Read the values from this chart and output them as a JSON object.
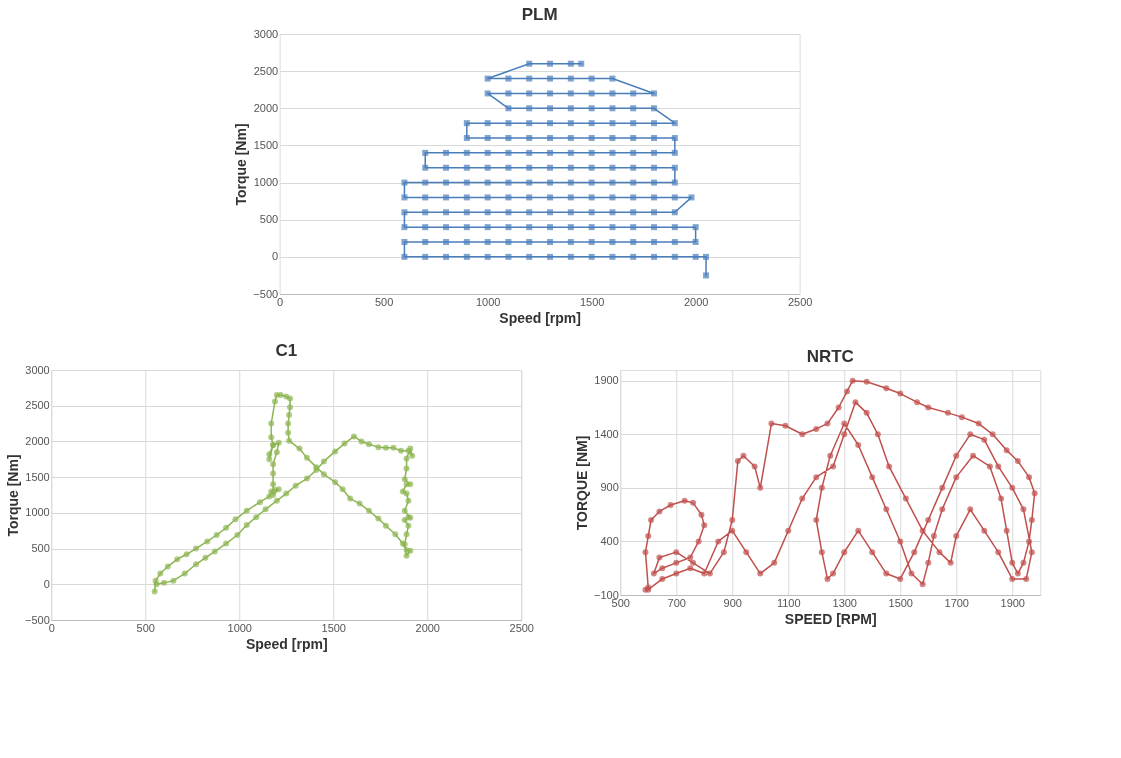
{
  "chart_data": [
    {
      "type": "line",
      "title": "PLM",
      "xlabel": "Speed [rpm]",
      "ylabel": "Torque [Nm]",
      "xlim": [
        0,
        2500
      ],
      "ylim": [
        -500,
        3000
      ],
      "xticks": [
        0,
        500,
        1000,
        1500,
        2000,
        2500
      ],
      "yticks": [
        -500,
        0,
        500,
        1000,
        1500,
        2000,
        2500,
        3000
      ],
      "grid": "y",
      "marker": "square",
      "line_style": "solid",
      "series": [
        {
          "color": "#4a7ebb",
          "x": [
            2050,
            2050,
            2000,
            1900,
            1800,
            1700,
            1600,
            1500,
            1400,
            1300,
            1200,
            1100,
            1000,
            900,
            800,
            700,
            600,
            600,
            700,
            800,
            900,
            1000,
            1100,
            1200,
            1300,
            1400,
            1500,
            1600,
            1700,
            1800,
            1900,
            2000,
            2000,
            1900,
            1800,
            1700,
            1600,
            1500,
            1400,
            1300,
            1200,
            1100,
            1000,
            900,
            800,
            700,
            600,
            600,
            700,
            800,
            900,
            1000,
            1100,
            1200,
            1300,
            1400,
            1500,
            1600,
            1700,
            1800,
            1900,
            1980,
            1900,
            1800,
            1700,
            1600,
            1500,
            1400,
            1300,
            1200,
            1100,
            1000,
            900,
            800,
            700,
            600,
            600,
            700,
            800,
            900,
            1000,
            1100,
            1200,
            1300,
            1400,
            1500,
            1600,
            1700,
            1800,
            1900,
            1900,
            1800,
            1700,
            1600,
            1500,
            1400,
            1300,
            1200,
            1100,
            1000,
            900,
            800,
            700,
            700,
            800,
            900,
            1000,
            1100,
            1200,
            1300,
            1400,
            1500,
            1600,
            1700,
            1800,
            1900,
            1900,
            1800,
            1700,
            1600,
            1500,
            1400,
            1300,
            1200,
            1100,
            1000,
            900,
            900,
            1000,
            1100,
            1200,
            1300,
            1400,
            1500,
            1600,
            1700,
            1800,
            1900,
            1800,
            1700,
            1600,
            1500,
            1400,
            1300,
            1200,
            1100,
            1000,
            1100,
            1200,
            1300,
            1400,
            1500,
            1600,
            1700,
            1800,
            1600,
            1500,
            1400,
            1300,
            1200,
            1100,
            1000,
            1200,
            1300,
            1400,
            1450
          ],
          "values": [
            -250,
            0,
            0,
            0,
            0,
            0,
            0,
            0,
            0,
            0,
            0,
            0,
            0,
            0,
            0,
            0,
            0,
            200,
            200,
            200,
            200,
            200,
            200,
            200,
            200,
            200,
            200,
            200,
            200,
            200,
            200,
            200,
            400,
            400,
            400,
            400,
            400,
            400,
            400,
            400,
            400,
            400,
            400,
            400,
            400,
            400,
            400,
            600,
            600,
            600,
            600,
            600,
            600,
            600,
            600,
            600,
            600,
            600,
            600,
            600,
            600,
            800,
            800,
            800,
            800,
            800,
            800,
            800,
            800,
            800,
            800,
            800,
            800,
            800,
            800,
            800,
            1000,
            1000,
            1000,
            1000,
            1000,
            1000,
            1000,
            1000,
            1000,
            1000,
            1000,
            1000,
            1000,
            1000,
            1200,
            1200,
            1200,
            1200,
            1200,
            1200,
            1200,
            1200,
            1200,
            1200,
            1200,
            1200,
            1200,
            1400,
            1400,
            1400,
            1400,
            1400,
            1400,
            1400,
            1400,
            1400,
            1400,
            1400,
            1400,
            1400,
            1600,
            1600,
            1600,
            1600,
            1600,
            1600,
            1600,
            1600,
            1600,
            1600,
            1600,
            1800,
            1800,
            1800,
            1800,
            1800,
            1800,
            1800,
            1800,
            1800,
            1800,
            1800,
            2000,
            2000,
            2000,
            2000,
            2000,
            2000,
            2000,
            2000,
            2200,
            2200,
            2200,
            2200,
            2200,
            2200,
            2200,
            2200,
            2200,
            2400,
            2400,
            2400,
            2400,
            2400,
            2400,
            2400,
            2600,
            2600,
            2600,
            2600
          ]
        }
      ]
    },
    {
      "type": "line",
      "title": "C1",
      "xlabel": "Speed [rpm]",
      "ylabel": "Torque [Nm]",
      "xlim": [
        0,
        2500
      ],
      "ylim": [
        -500,
        3000
      ],
      "xticks": [
        0,
        500,
        1000,
        1500,
        2000,
        2500
      ],
      "yticks": [
        -500,
        0,
        500,
        1000,
        1500,
        2000,
        2500,
        3000
      ],
      "grid": true,
      "marker": "circle",
      "line_style": "solid",
      "series": [
        {
          "color": "#8db552",
          "x": [
            550,
            555,
            580,
            620,
            670,
            720,
            770,
            830,
            880,
            930,
            980,
            1040,
            1110,
            1160,
            1170,
            1190,
            1210,
            1180,
            1180,
            1180,
            1180,
            1200,
            1210,
            1180,
            1160,
            1160,
            1180,
            1170,
            1170,
            1190,
            1200,
            1220,
            1250,
            1270,
            1270,
            1265,
            1260,
            1260,
            1265,
            1320,
            1360,
            1410,
            1450,
            1510,
            1550,
            1590,
            1640,
            1690,
            1740,
            1780,
            1830,
            1870,
            1890,
            1910,
            1890,
            1880,
            1890,
            1900,
            1880,
            1900,
            1910,
            1880,
            1900,
            1890,
            1870,
            1890,
            1910,
            1880,
            1890,
            1890,
            1910,
            1920,
            1900,
            1860,
            1820,
            1780,
            1740,
            1690,
            1650,
            1610,
            1560,
            1510,
            1450,
            1410,
            1360,
            1300,
            1250,
            1200,
            1140,
            1090,
            1040,
            990,
            930,
            870,
            820,
            770,
            710,
            650,
            600,
            560
          ],
          "values": [
            -100,
            50,
            150,
            250,
            350,
            420,
            500,
            600,
            690,
            790,
            910,
            1030,
            1150,
            1230,
            1300,
            1320,
            1330,
            1250,
            1400,
            1550,
            1680,
            1850,
            1980,
            1950,
            1750,
            1820,
            1950,
            2060,
            2250,
            2560,
            2650,
            2650,
            2630,
            2600,
            2480,
            2370,
            2250,
            2120,
            2010,
            1900,
            1770,
            1640,
            1540,
            1430,
            1330,
            1200,
            1130,
            1030,
            920,
            820,
            700,
            570,
            480,
            470,
            400,
            560,
            700,
            820,
            900,
            940,
            930,
            1030,
            1170,
            1270,
            1300,
            1400,
            1400,
            1470,
            1620,
            1760,
            1900,
            1800,
            1870,
            1870,
            1910,
            1910,
            1920,
            1960,
            2000,
            2070,
            1970,
            1860,
            1720,
            1600,
            1480,
            1380,
            1270,
            1170,
            1050,
            940,
            830,
            690,
            570,
            460,
            370,
            280,
            150,
            50,
            20,
            0
          ]
        }
      ]
    },
    {
      "type": "line",
      "title": "NRTC",
      "xlabel": "SPEED [RPM]",
      "ylabel": "TORQUE [NM]",
      "xlim": [
        500,
        2000
      ],
      "ylim": [
        -100,
        2000
      ],
      "xticks": [
        500,
        700,
        900,
        1100,
        1300,
        1500,
        1700,
        1900
      ],
      "yticks": [
        -100,
        400,
        900,
        1400,
        1900
      ],
      "grid": true,
      "marker": "circle",
      "line_style": "solid",
      "series": [
        {
          "color": "#c0504d",
          "x": [
            590,
            600,
            590,
            600,
            610,
            640,
            680,
            730,
            760,
            790,
            800,
            780,
            750,
            700,
            650,
            620,
            640,
            700,
            760,
            820,
            870,
            900,
            920,
            940,
            980,
            1000,
            1040,
            1090,
            1150,
            1200,
            1240,
            1280,
            1310,
            1330,
            1380,
            1450,
            1500,
            1560,
            1600,
            1670,
            1720,
            1780,
            1830,
            1880,
            1920,
            1960,
            1980,
            1970,
            1960,
            1940,
            1920,
            1900,
            1880,
            1860,
            1820,
            1760,
            1700,
            1650,
            1620,
            1600,
            1580,
            1540,
            1500,
            1450,
            1400,
            1350,
            1300,
            1250,
            1220,
            1200,
            1220,
            1240,
            1260,
            1300,
            1350,
            1400,
            1450,
            1500,
            1550,
            1600,
            1650,
            1700,
            1750,
            1800,
            1850,
            1900,
            1940,
            1970,
            1950,
            1900,
            1850,
            1800,
            1750,
            1700,
            1680,
            1640,
            1580,
            1520,
            1460,
            1420,
            1380,
            1340,
            1300,
            1260,
            1200,
            1150,
            1100,
            1050,
            1000,
            950,
            900,
            850,
            800,
            750,
            700,
            650,
            600
          ],
          "values": [
            -50,
            -30,
            300,
            450,
            600,
            680,
            740,
            780,
            760,
            650,
            550,
            400,
            250,
            200,
            150,
            100,
            250,
            300,
            200,
            100,
            300,
            600,
            1150,
            1200,
            1100,
            900,
            1500,
            1480,
            1400,
            1450,
            1500,
            1650,
            1800,
            1900,
            1890,
            1830,
            1780,
            1700,
            1650,
            1600,
            1560,
            1500,
            1400,
            1250,
            1150,
            1000,
            850,
            600,
            400,
            200,
            100,
            200,
            500,
            800,
            1100,
            1200,
            1000,
            700,
            450,
            200,
            0,
            100,
            400,
            700,
            1000,
            1300,
            1500,
            1200,
            900,
            600,
            300,
            50,
            100,
            300,
            500,
            300,
            100,
            50,
            300,
            600,
            900,
            1200,
            1400,
            1350,
            1100,
            900,
            700,
            300,
            50,
            50,
            300,
            500,
            700,
            450,
            200,
            300,
            500,
            800,
            1100,
            1400,
            1600,
            1700,
            1400,
            1100,
            1000,
            800,
            500,
            200,
            100,
            300,
            500,
            400,
            100,
            150,
            100,
            50,
            -50
          ]
        }
      ]
    }
  ]
}
